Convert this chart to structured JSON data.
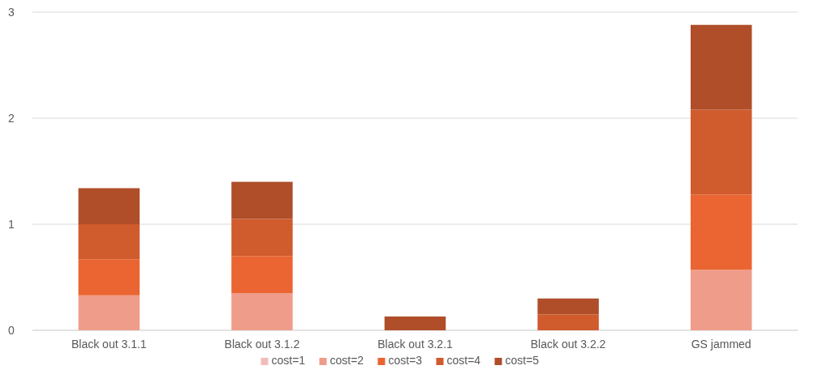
{
  "chart_data": {
    "type": "bar",
    "stacked": true,
    "categories": [
      "Black out 3.1.1",
      "Black out 3.1.2",
      "Black out 3.2.1",
      "Black out 3.2.2",
      "GS jammed"
    ],
    "series": [
      {
        "name": "cost=1",
        "color": "#f3bcbc",
        "values": [
          0,
          0,
          0,
          0,
          0
        ]
      },
      {
        "name": "cost=2",
        "color": "#ef9c8a",
        "values": [
          0.33,
          0.35,
          0,
          0,
          0.57
        ]
      },
      {
        "name": "cost=3",
        "color": "#ea6531",
        "values": [
          0.34,
          0.35,
          0,
          0,
          0.71
        ]
      },
      {
        "name": "cost=4",
        "color": "#d05b2d",
        "values": [
          0.33,
          0.35,
          0,
          0.15,
          0.8
        ]
      },
      {
        "name": "cost=5",
        "color": "#af4e29",
        "values": [
          0.34,
          0.35,
          0.13,
          0.15,
          0.8
        ]
      }
    ],
    "ylim": [
      0,
      3
    ],
    "yticks": [
      0,
      1,
      2,
      3
    ],
    "grid": "y",
    "legend": "bottom"
  }
}
